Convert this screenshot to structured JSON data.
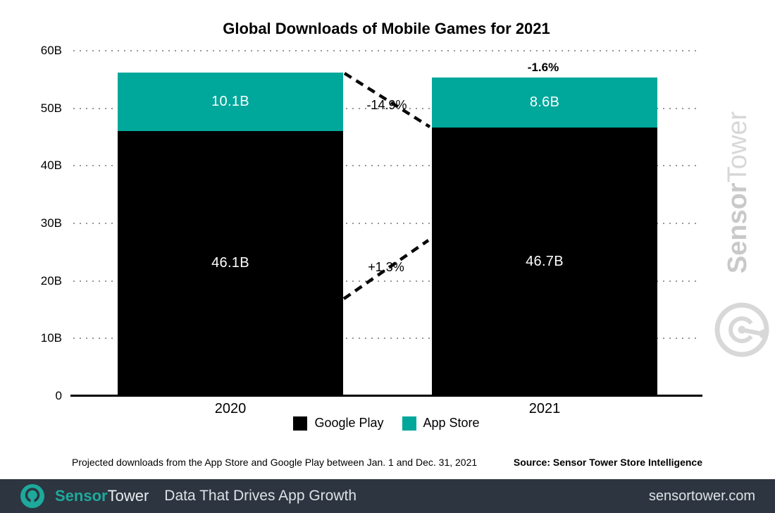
{
  "title": "Global Downloads of Mobile Games for 2021",
  "chart_data": {
    "type": "bar",
    "stacked": true,
    "title": "Global Downloads of Mobile Games for 2021",
    "categories": [
      "2020",
      "2021"
    ],
    "series": [
      {
        "name": "Google Play",
        "color": "#000000",
        "values": [
          46.1,
          46.7
        ],
        "labels": [
          "46.1B",
          "46.7B"
        ]
      },
      {
        "name": "App Store",
        "color": "#00a79b",
        "values": [
          10.1,
          8.6
        ],
        "labels": [
          "10.1B",
          "8.6B"
        ]
      }
    ],
    "ylim": [
      0,
      60
    ],
    "y_ticks": [
      {
        "value": 0,
        "label": "0"
      },
      {
        "value": 10,
        "label": "10B"
      },
      {
        "value": 20,
        "label": "20B"
      },
      {
        "value": 30,
        "label": "30B"
      },
      {
        "value": 40,
        "label": "40B"
      },
      {
        "value": 50,
        "label": "50B"
      },
      {
        "value": 60,
        "label": "60B"
      }
    ],
    "grid": "horizontal-dotted",
    "legend_position": "bottom",
    "annotations": [
      {
        "text": "-14.9%"
      },
      {
        "text": "+1.3%"
      },
      {
        "text": "-1.6%"
      }
    ]
  },
  "footnote": "Projected downloads from the App Store and Google Play between Jan. 1 and Dec. 31, 2021",
  "source": "Source: Sensor Tower Store Intelligence",
  "watermark": {
    "brand_bold": "Sensor",
    "brand_light": "Tower"
  },
  "footer": {
    "brand_bold": "Sensor",
    "brand_light": "Tower",
    "tagline": "Data That Drives App Growth",
    "url": "sensortower.com",
    "bg_color": "#2c3540",
    "accent_color": "#00a79b"
  }
}
